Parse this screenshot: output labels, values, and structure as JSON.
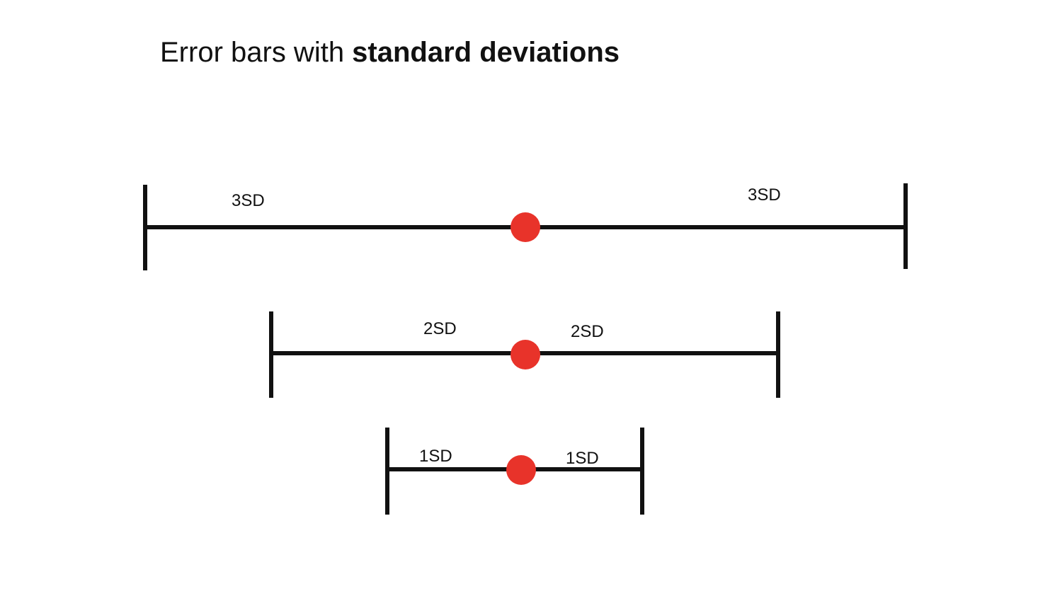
{
  "title": {
    "prefix": "Error bars with ",
    "emphasis": "standard deviations"
  },
  "colors": {
    "line": "#111111",
    "mean_marker": "#e8332a",
    "background": "#ffffff"
  },
  "error_bars": [
    {
      "id": "3sd",
      "left_label": "3SD",
      "right_label": "3SD"
    },
    {
      "id": "2sd",
      "left_label": "2SD",
      "right_label": "2SD"
    },
    {
      "id": "1sd",
      "left_label": "1SD",
      "right_label": "1SD"
    }
  ]
}
